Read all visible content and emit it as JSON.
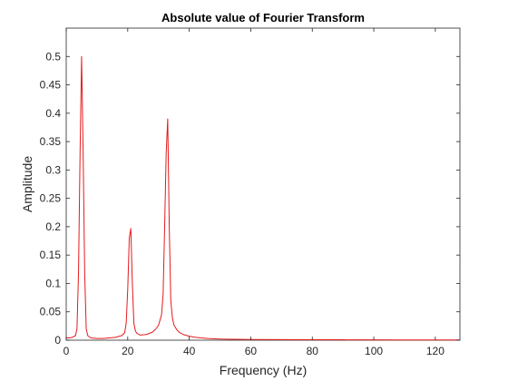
{
  "chart_data": {
    "type": "line",
    "title": "Absolute value of Fourier Transform",
    "xlabel": "Frequency (Hz)",
    "ylabel": "Amplitude",
    "xlim": [
      0,
      128
    ],
    "ylim": [
      0,
      0.55
    ],
    "xticks": [
      0,
      20,
      40,
      60,
      80,
      100,
      120
    ],
    "yticks": [
      0,
      0.05,
      0.1,
      0.15,
      0.2,
      0.25,
      0.3,
      0.35,
      0.4,
      0.45,
      0.5
    ],
    "grid": false,
    "line_color": "#e41a1c",
    "series": [
      {
        "x": [
          0,
          1,
          2,
          3,
          3.5,
          4,
          4.5,
          5,
          5.5,
          6,
          6.5,
          7,
          8,
          10,
          12,
          14,
          16,
          18,
          19,
          19.5,
          20,
          20.5,
          21,
          21.5,
          22,
          22.5,
          23,
          24,
          26,
          28,
          29,
          30,
          31,
          31.5,
          32,
          32.5,
          33,
          33.5,
          34,
          34.5,
          35,
          36,
          37,
          38,
          40,
          42,
          44,
          46,
          50,
          55,
          60,
          70,
          80,
          90,
          100,
          110,
          120,
          128
        ],
        "y": [
          0.004,
          0.004,
          0.005,
          0.008,
          0.02,
          0.12,
          0.33,
          0.5,
          0.33,
          0.12,
          0.02,
          0.008,
          0.004,
          0.003,
          0.003,
          0.004,
          0.005,
          0.008,
          0.013,
          0.03,
          0.09,
          0.18,
          0.197,
          0.1,
          0.03,
          0.016,
          0.012,
          0.009,
          0.01,
          0.014,
          0.019,
          0.026,
          0.045,
          0.08,
          0.2,
          0.33,
          0.39,
          0.2,
          0.07,
          0.04,
          0.027,
          0.018,
          0.013,
          0.01,
          0.007,
          0.005,
          0.004,
          0.003,
          0.002,
          0.0015,
          0.0012,
          0.001,
          0.0008,
          0.0007,
          0.0006,
          0.0005,
          0.0005,
          0.0005
        ]
      }
    ]
  }
}
